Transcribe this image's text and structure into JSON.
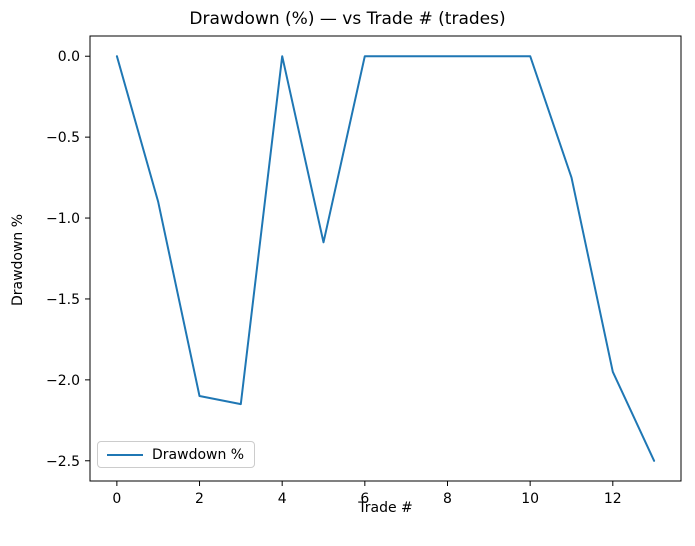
{
  "figure": {
    "title": "Drawdown (%) — vs Trade # (trades)"
  },
  "chart_data": {
    "type": "line",
    "title": "Drawdown (%) — vs Trade # (trades)",
    "xlabel": "Trade #",
    "ylabel": "Drawdown %",
    "x": [
      0,
      1,
      2,
      3,
      4,
      5,
      6,
      7,
      8,
      9,
      10,
      11,
      12,
      13
    ],
    "y": [
      0.0,
      -0.9,
      -2.1,
      -2.15,
      0.0,
      -1.15,
      0.0,
      0.0,
      0.0,
      0.0,
      0.0,
      -0.75,
      -1.95,
      -2.5
    ],
    "series": [
      {
        "name": "Drawdown %",
        "color": "#1f77b4"
      }
    ],
    "xlim": [
      -0.65,
      13.65
    ],
    "ylim": [
      -2.625,
      0.125
    ],
    "x_ticks": [
      0,
      2,
      4,
      6,
      8,
      10,
      12
    ],
    "x_tick_labels": [
      "0",
      "2",
      "4",
      "6",
      "8",
      "10",
      "12"
    ],
    "y_ticks": [
      0,
      -0.5,
      -1,
      -1.5,
      -2,
      -2.5
    ],
    "y_tick_labels": [
      "0.0",
      "−0.5",
      "−1.0",
      "−1.5",
      "−2.0",
      "−2.5"
    ],
    "grid": false,
    "legend": {
      "position": "lower left",
      "entries": [
        "Drawdown %"
      ]
    }
  },
  "legend": {
    "label": "Drawdown %"
  }
}
